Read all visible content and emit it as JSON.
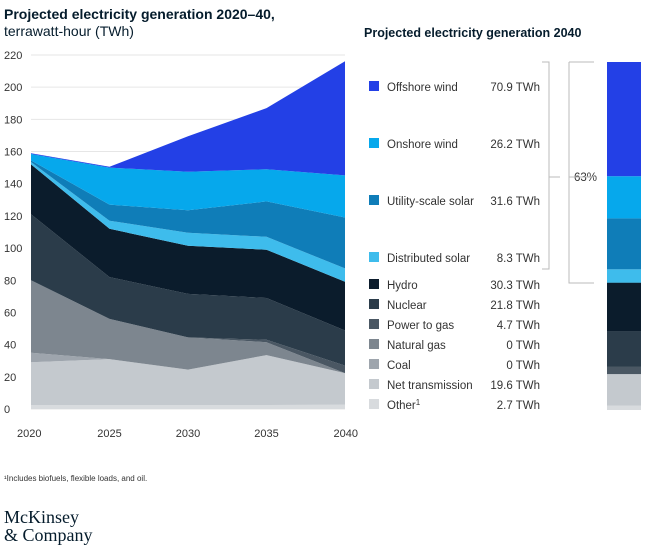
{
  "title": "Projected electricity generation 2020–40,",
  "subtitle": "terrawatt-hour (TWh)",
  "title2": "Projected electricity generation 2040",
  "footnote": "¹Includes biofuels, flexible loads, and oil.",
  "logo": [
    "McKinsey",
    "& Company"
  ],
  "chart_data": {
    "type": "area",
    "x": [
      2020,
      2025,
      2030,
      2035,
      2040
    ],
    "xlim": [
      2020,
      2040
    ],
    "ylim": [
      0,
      220
    ],
    "yticks": [
      0,
      20,
      40,
      60,
      80,
      100,
      120,
      140,
      160,
      180,
      200,
      220
    ],
    "unit": "TWh",
    "series": [
      {
        "name": "Other",
        "sup": "1",
        "color": "#d8dbde",
        "values": [
          2.5,
          2.5,
          2.5,
          2.5,
          2.7
        ],
        "value_2040": "2.7 TWh"
      },
      {
        "name": "Net transmission",
        "color": "#c4c9ce",
        "values": [
          26.5,
          28.5,
          22,
          31,
          19.6
        ],
        "value_2040": "19.6 TWh"
      },
      {
        "name": "Coal",
        "color": "#9ea5ad",
        "values": [
          6,
          0,
          0,
          0,
          0
        ],
        "value_2040": "0 TWh"
      },
      {
        "name": "Natural gas",
        "color": "#7d868f",
        "values": [
          45,
          25,
          20,
          8,
          0
        ],
        "value_2040": "0 TWh"
      },
      {
        "name": "Power to gas",
        "color": "#4a5763",
        "values": [
          0,
          0,
          0,
          1.5,
          4.7
        ],
        "value_2040": "4.7 TWh"
      },
      {
        "name": "Nuclear",
        "color": "#2b3c4a",
        "values": [
          41,
          26,
          27,
          26,
          21.8
        ],
        "value_2040": "21.8 TWh"
      },
      {
        "name": "Hydro",
        "color": "#0b1c2c",
        "values": [
          31,
          30,
          30,
          30,
          30.3
        ],
        "value_2040": "30.3 TWh"
      },
      {
        "name": "Distributed solar",
        "color": "#3ebcec",
        "values": [
          1.5,
          5,
          8,
          8,
          8.3
        ],
        "value_2040": "8.3 TWh"
      },
      {
        "name": "Utility-scale solar",
        "color": "#0f7db8",
        "values": [
          1,
          10,
          14,
          22,
          31.6
        ],
        "value_2040": "31.6 TWh"
      },
      {
        "name": "Onshore wind",
        "color": "#06a8ec",
        "values": [
          4,
          23,
          24,
          20,
          26.2
        ],
        "value_2040": "26.2 TWh"
      },
      {
        "name": "Offshore wind",
        "color": "#2340e6",
        "values": [
          0.5,
          0.5,
          22,
          38,
          70.9
        ],
        "value_2040": "70.9 TWh"
      }
    ],
    "bracket_label": "63%"
  }
}
